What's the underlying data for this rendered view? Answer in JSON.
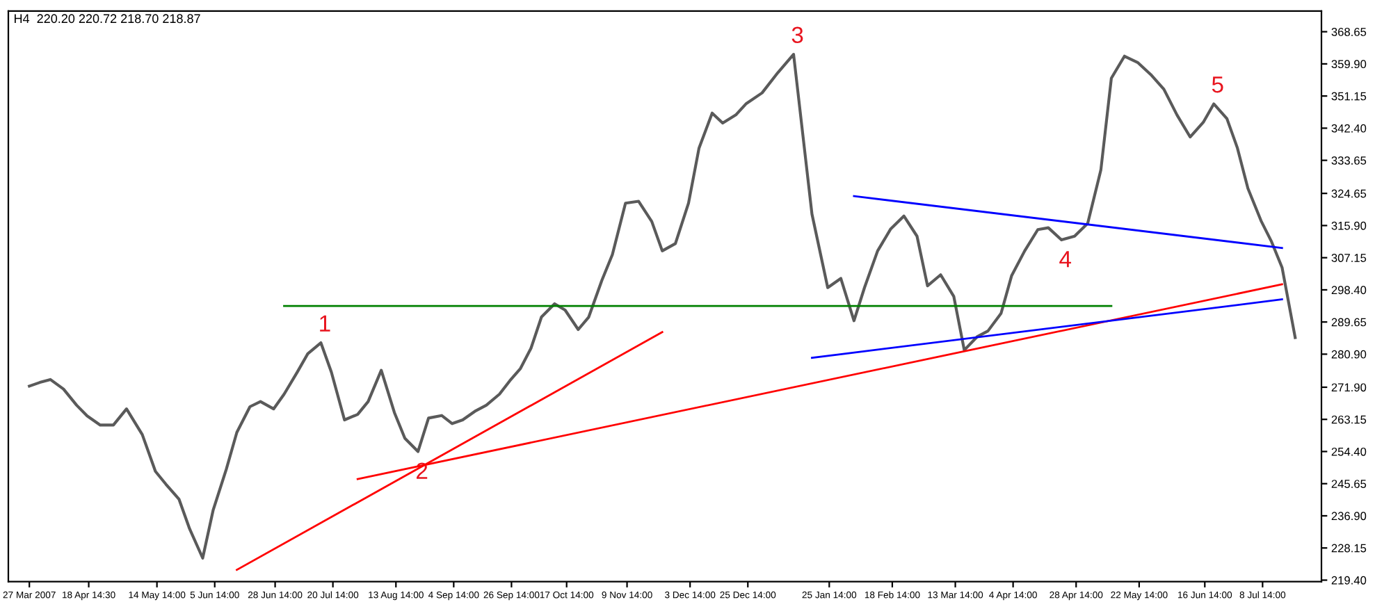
{
  "chart_data": {
    "type": "line",
    "title": "H4  220.20 220.72 218.70 218.87",
    "x": [
      "2007-03-27",
      "2007-03-31",
      "2007-04-04",
      "2007-04-09",
      "2007-04-14",
      "2007-04-18",
      "2007-04-23",
      "2007-04-28",
      "2007-05-03",
      "2007-05-09",
      "2007-05-14",
      "2007-05-18",
      "2007-05-23",
      "2007-05-27",
      "2007-06-01",
      "2007-06-05",
      "2007-06-10",
      "2007-06-14",
      "2007-06-19",
      "2007-06-23",
      "2007-06-28",
      "2007-07-02",
      "2007-07-07",
      "2007-07-11",
      "2007-07-16",
      "2007-07-20",
      "2007-07-25",
      "2007-07-30",
      "2007-08-03",
      "2007-08-08",
      "2007-08-13",
      "2007-08-17",
      "2007-08-22",
      "2007-08-26",
      "2007-08-31",
      "2007-09-04",
      "2007-09-08",
      "2007-09-13",
      "2007-09-17",
      "2007-09-22",
      "2007-09-26",
      "2007-09-30",
      "2007-10-04",
      "2007-10-08",
      "2007-10-13",
      "2007-10-17",
      "2007-10-22",
      "2007-10-26",
      "2007-10-31",
      "2007-11-04",
      "2007-11-09",
      "2007-11-14",
      "2007-11-19",
      "2007-11-23",
      "2007-11-28",
      "2007-12-03",
      "2007-12-07",
      "2007-12-12",
      "2007-12-16",
      "2007-12-21",
      "2007-12-25",
      "2007-12-31",
      "2008-01-06",
      "2008-01-12",
      "2008-01-19",
      "2008-01-25",
      "2008-01-30",
      "2008-02-04",
      "2008-02-08",
      "2008-02-13",
      "2008-02-18",
      "2008-02-23",
      "2008-02-28",
      "2008-03-03",
      "2008-03-08",
      "2008-03-13",
      "2008-03-17",
      "2008-03-22",
      "2008-03-26",
      "2008-03-31",
      "2008-04-04",
      "2008-04-09",
      "2008-04-14",
      "2008-04-18",
      "2008-04-23",
      "2008-04-28",
      "2008-05-03",
      "2008-05-08",
      "2008-05-12",
      "2008-05-17",
      "2008-05-22",
      "2008-05-27",
      "2008-06-01",
      "2008-06-06",
      "2008-06-11",
      "2008-06-16",
      "2008-06-20",
      "2008-06-25",
      "2008-06-29",
      "2008-07-03",
      "2008-07-08",
      "2008-07-12",
      "2008-07-16",
      "2008-07-21"
    ],
    "series": [
      {
        "color": "#5a5a5a",
        "values": [
          272.2,
          273.2,
          274.0,
          271.4,
          267.0,
          264.1,
          261.6,
          261.6,
          266.0,
          259.0,
          249.0,
          245.5,
          241.4,
          233.4,
          225.4,
          238.5,
          249.6,
          259.6,
          266.6,
          268.0,
          266.0,
          270.0,
          276.0,
          281.0,
          284.0,
          276.0,
          263.0,
          264.5,
          268.0,
          276.5,
          265.0,
          258.0,
          254.4,
          263.5,
          264.2,
          262.0,
          263.0,
          265.5,
          267.0,
          270.0,
          273.7,
          277.0,
          282.5,
          291.0,
          294.6,
          292.9,
          287.6,
          291.0,
          301.0,
          308.0,
          322.0,
          322.5,
          317.0,
          309.0,
          311.0,
          322.0,
          337.0,
          346.5,
          343.8,
          346.0,
          349.1,
          352.0,
          357.5,
          362.5,
          319.0,
          299.0,
          301.5,
          290.0,
          299.0,
          309.0,
          315.0,
          318.5,
          313.0,
          299.5,
          302.5,
          296.6,
          282.0,
          285.7,
          287.2,
          292.0,
          302.2,
          309.0,
          314.8,
          315.3,
          312.0,
          313.0,
          316.5,
          331.0,
          356.0,
          362.0,
          360.3,
          357.0,
          353.0,
          346.0,
          340.0,
          344.0,
          349.0,
          345.0,
          337.0,
          326.0,
          317.2,
          311.5,
          304.5,
          285.4
        ]
      },
      {
        "type": "line",
        "color": "#008000",
        "x": [
          "2007-07-02",
          "2008-05-12"
        ],
        "values": [
          294.0,
          294.0
        ]
      },
      {
        "type": "line",
        "color": "#ff0000",
        "x": [
          "2007-06-14",
          "2007-11-23"
        ],
        "values": [
          222.2,
          286.9
        ]
      },
      {
        "type": "line",
        "color": "#ff0000",
        "x": [
          "2007-07-30",
          "2008-07-16"
        ],
        "values": [
          246.9,
          299.9
        ]
      },
      {
        "type": "line",
        "color": "#0000ff",
        "x": [
          "2008-02-04",
          "2008-07-16"
        ],
        "values": [
          323.9,
          309.8
        ]
      },
      {
        "type": "line",
        "color": "#0000ff",
        "x": [
          "2008-01-19",
          "2008-07-16"
        ],
        "values": [
          279.9,
          295.8
        ]
      }
    ],
    "annotations": [
      {
        "text": "1",
        "x": "2007-07-16",
        "y": 284.0
      },
      {
        "text": "2",
        "x": "2007-08-22",
        "y": 254.4
      },
      {
        "text": "3",
        "x": "2008-01-12",
        "y": 362.5
      },
      {
        "text": "4",
        "x": "2008-04-23",
        "y": 312.0
      },
      {
        "text": "5",
        "x": "2008-06-20",
        "y": 349.0
      }
    ],
    "xlim": [
      "2007-03-19",
      "2008-07-31"
    ],
    "xticks": [
      {
        "value": "2007-03-27",
        "label": "27 Mar 2007"
      },
      {
        "value": "2007-04-18T14:30",
        "label": "18 Apr 14:30"
      },
      {
        "value": "2007-05-14T14:00",
        "label": "14 May 14:00"
      },
      {
        "value": "2007-06-05T14:00",
        "label": "5 Jun 14:00"
      },
      {
        "value": "2007-06-28T14:00",
        "label": "28 Jun 14:00"
      },
      {
        "value": "2007-07-20T14:00",
        "label": "20 Jul 14:00"
      },
      {
        "value": "2007-08-13T14:00",
        "label": "13 Aug 14:00"
      },
      {
        "value": "2007-09-04T14:00",
        "label": "4 Sep 14:00"
      },
      {
        "value": "2007-09-26T14:00",
        "label": "26 Sep 14:00"
      },
      {
        "value": "2007-10-17T14:00",
        "label": "17 Oct 14:00"
      },
      {
        "value": "2007-11-09T14:00",
        "label": "9 Nov 14:00"
      },
      {
        "value": "2007-12-03T14:00",
        "label": "3 Dec 14:00"
      },
      {
        "value": "2007-12-25T14:00",
        "label": "25 Dec 14:00"
      },
      {
        "value": "2008-01-25T14:00",
        "label": "25 Jan 14:00"
      },
      {
        "value": "2008-02-18T14:00",
        "label": "18 Feb 14:00"
      },
      {
        "value": "2008-03-13T14:00",
        "label": "13 Mar 14:00"
      },
      {
        "value": "2008-04-04T14:00",
        "label": "4 Apr 14:00"
      },
      {
        "value": "2008-04-28T14:00",
        "label": "28 Apr 14:00"
      },
      {
        "value": "2008-05-22T14:00",
        "label": "22 May 14:00"
      },
      {
        "value": "2008-06-16T14:00",
        "label": "16 Jun 14:00"
      },
      {
        "value": "2008-07-08T14:00",
        "label": "8 Jul 14:00"
      }
    ],
    "ylim": [
      219.0,
      374.3
    ],
    "yticks": [
      {
        "value": 219.4,
        "label": "219.40"
      },
      228.15,
      {
        "value": 236.9,
        "label": "236.90"
      },
      245.65,
      {
        "value": 254.4,
        "label": "254.40"
      },
      263.15,
      {
        "value": 271.9,
        "label": "271.90"
      },
      {
        "value": 280.9,
        "label": "280.90"
      },
      289.65,
      {
        "value": 298.4,
        "label": "298.40"
      },
      307.15,
      {
        "value": 315.9,
        "label": "315.90"
      },
      324.65,
      333.65,
      {
        "value": 342.4,
        "label": "342.40"
      },
      351.15,
      {
        "value": 359.9,
        "label": "359.90"
      },
      368.65
    ],
    "grid": false,
    "legend": false,
    "marker": "none",
    "line_style": "solid"
  }
}
